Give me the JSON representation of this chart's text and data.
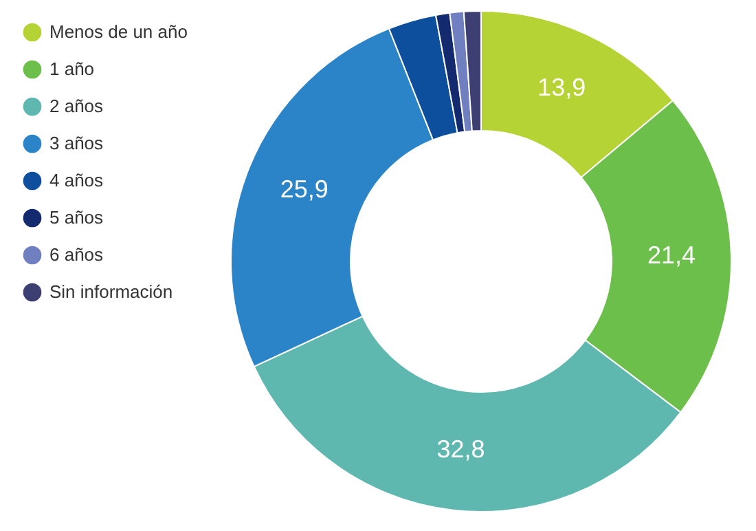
{
  "chart_data": {
    "type": "donut",
    "categories": [
      "Menos de un año",
      "1 año",
      "2 años",
      "3 años",
      "4 años",
      "5 años",
      "6 años",
      "Sin información"
    ],
    "values": [
      13.9,
      21.4,
      32.8,
      25.9,
      3.1,
      0.9,
      0.9,
      1.1
    ],
    "value_labels": [
      "13,9",
      "21,4",
      "32,8",
      "25,9",
      null,
      null,
      null,
      null
    ],
    "colors": [
      "#b5d334",
      "#6cbf4a",
      "#5fb8b0",
      "#2b84c8",
      "#0d4f9c",
      "#142a6e",
      "#6f7fc0",
      "#3d3f73"
    ],
    "legend": "left"
  }
}
